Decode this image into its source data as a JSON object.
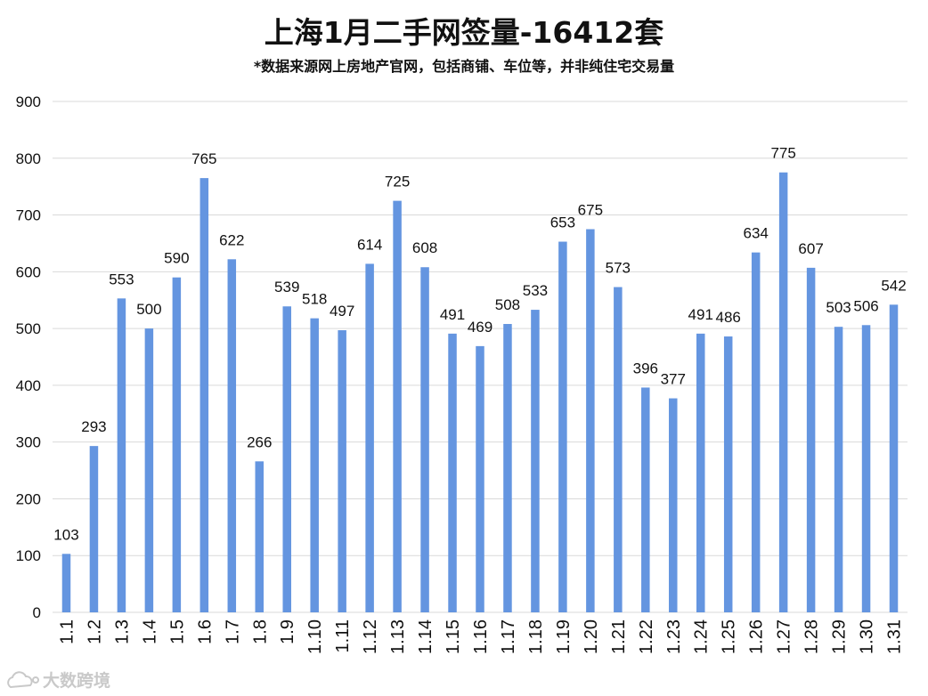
{
  "chart_data": {
    "type": "bar",
    "title": "上海1月二手网签量-16412套",
    "subtitle": "*数据来源网上房地产官网，包括商铺、车位等，并非纯住宅交易量",
    "xlabel": "",
    "ylabel": "",
    "ylim": [
      0,
      900
    ],
    "yticks": [
      0,
      100,
      200,
      300,
      400,
      500,
      600,
      700,
      800,
      900
    ],
    "grid": true,
    "bar_color": "#6495e0",
    "categories": [
      "1.1",
      "1.2",
      "1.3",
      "1.4",
      "1.5",
      "1.6",
      "1.7",
      "1.8",
      "1.9",
      "1.10",
      "1.11",
      "1.12",
      "1.13",
      "1.14",
      "1.15",
      "1.16",
      "1.17",
      "1.18",
      "1.19",
      "1.20",
      "1.21",
      "1.22",
      "1.23",
      "1.24",
      "1.25",
      "1.26",
      "1.27",
      "1.28",
      "1.29",
      "1.30",
      "1.31"
    ],
    "values": [
      103,
      293,
      553,
      500,
      590,
      765,
      622,
      266,
      539,
      518,
      497,
      614,
      725,
      608,
      491,
      469,
      508,
      533,
      653,
      675,
      573,
      396,
      377,
      491,
      486,
      634,
      775,
      607,
      503,
      506,
      542
    ]
  },
  "watermark": {
    "text": "大数跨境",
    "icon": "cloud-logo-icon"
  }
}
